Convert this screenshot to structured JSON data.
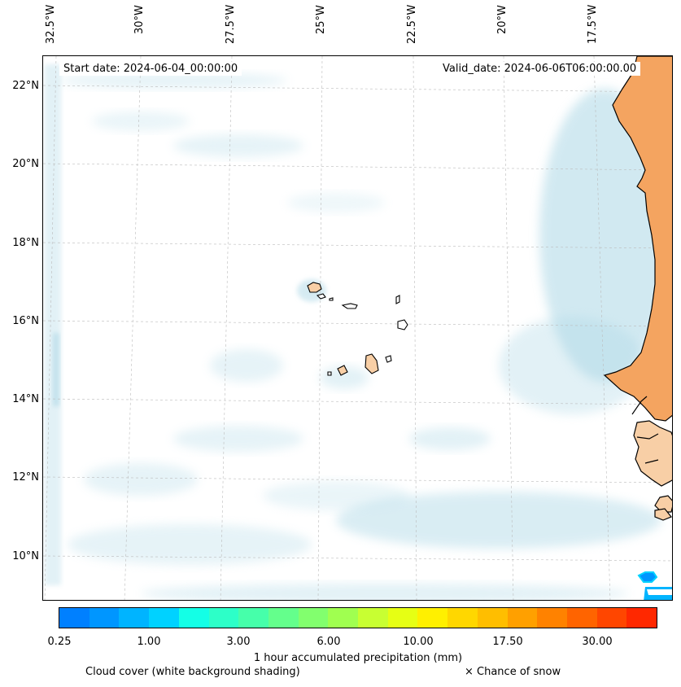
{
  "map": {
    "start_date": "Start date: 2024-06-04_00:00:00",
    "valid_date": "Valid_date: 2024-06-06T06:00:00.00",
    "lon_labels": [
      "32.5°W",
      "30°W",
      "27.5°W",
      "25°W",
      "22.5°W",
      "20°W",
      "17.5°W"
    ],
    "lat_labels": [
      "22°N",
      "20°N",
      "18°N",
      "16°N",
      "14°N",
      "12°N",
      "10°N"
    ],
    "colors": {
      "land": "#f4a460",
      "island_land": "#f8cfa6",
      "cloud": "#add8e6",
      "coastline": "#000000",
      "grid": "#bbbbbb"
    }
  },
  "colorbar": {
    "colors": [
      "#0080ff",
      "#0096ff",
      "#00b4ff",
      "#00d2ff",
      "#14ffe6",
      "#2dffc8",
      "#46ffaa",
      "#64ff8c",
      "#82ff6e",
      "#a0ff50",
      "#c8ff32",
      "#e6ff14",
      "#fff000",
      "#ffd700",
      "#ffbe00",
      "#ffa000",
      "#ff8200",
      "#ff6400",
      "#ff4600",
      "#ff2800"
    ],
    "tick_labels": [
      "0.25",
      "1.00",
      "3.00",
      "6.00",
      "10.00",
      "17.50",
      "30.00"
    ],
    "title": "1 hour accumulated precipitation (mm)"
  },
  "legend": {
    "cloud": "Cloud cover (white background shading)",
    "snow": "× Chance of snow"
  }
}
